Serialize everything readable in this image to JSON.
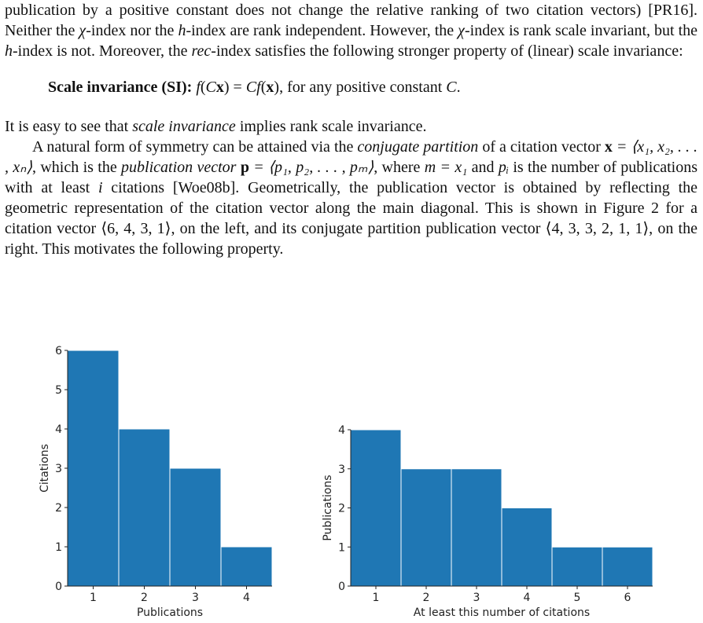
{
  "text": [
    [
      "publication by a positive constant does not change the relative ranking of two citation vectors) [PR16]. Neither the ",
      "χ",
      "-index nor the ",
      "h",
      "-index are rank independent. However, the ",
      "χ",
      "-index is rank scale invariant, but the ",
      "h",
      "-index is not. Moreover, the ",
      "rec",
      "-index satisfies the following stronger property of (linear) scale invariance:"
    ],
    [
      "Scale invariance (SI):",
      " ",
      "f",
      "(",
      "C",
      "x",
      ") = ",
      "Cf",
      "(",
      "x",
      "), for any positive constant ",
      "C",
      "."
    ],
    [
      "It is easy to see that ",
      "scale invariance",
      " implies rank scale invariance."
    ],
    [
      "A natural form of symmetry can be attained via the ",
      "conjugate partition",
      " of a citation vector ",
      "x",
      " = ⟨x₁, x₂, . . . , xₙ⟩",
      ", which is the ",
      "publication vector",
      " ",
      "p",
      " = ⟨p₁, p₂, . . . , pₘ⟩",
      ", where ",
      "m = x₁",
      " and ",
      "pᵢ",
      " is the number of publications with at least ",
      "i",
      " citations [Woe08b]. Geometrically, the publication vector is obtained by reflecting the geometric representation of the citation vector along the main diagonal. This is shown in Figure 2 for a citation vector ⟨6, 4, 3, 1⟩, on the left, and its conjugate partition publication vector ⟨4, 3, 3, 2, 1, 1⟩, on the right. This motivates the following property."
    ]
  ],
  "chart_data": [
    {
      "type": "bar",
      "categories": [
        1,
        2,
        3,
        4
      ],
      "values": [
        6,
        4,
        3,
        1
      ],
      "color": "#1f77b4",
      "ylim": [
        0,
        6
      ],
      "yticks": [
        0,
        1,
        2,
        3,
        4,
        5,
        6
      ],
      "xlabel": "Publications",
      "ylabel": "Citations"
    },
    {
      "type": "bar",
      "categories": [
        1,
        2,
        3,
        4,
        5,
        6
      ],
      "values": [
        4,
        3,
        3,
        2,
        1,
        1
      ],
      "color": "#1f77b4",
      "ylim": [
        0,
        4
      ],
      "yticks": [
        0,
        1,
        2,
        3,
        4
      ],
      "xlabel": "At least this number of citations",
      "ylabel": "Publications"
    }
  ]
}
